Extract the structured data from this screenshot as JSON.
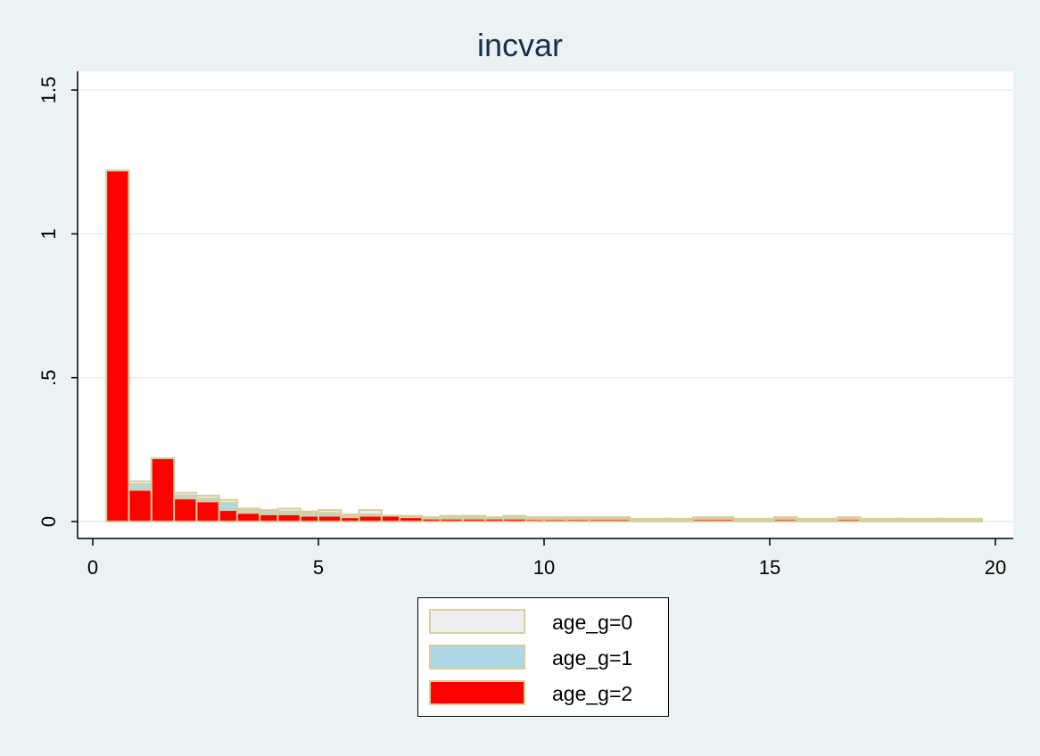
{
  "chart_data": {
    "type": "bar",
    "title": "incvar",
    "xlabel": "",
    "ylabel": "",
    "xlim": [
      0,
      20
    ],
    "ylim": [
      0,
      1.5
    ],
    "x_ticks": [
      {
        "value": 0,
        "label": "0"
      },
      {
        "value": 5,
        "label": "5"
      },
      {
        "value": 10,
        "label": "10"
      },
      {
        "value": 15,
        "label": "15"
      },
      {
        "value": 20,
        "label": "20"
      }
    ],
    "y_ticks": [
      {
        "value": 0,
        "label": "0"
      },
      {
        "value": 0.5,
        "label": ".5"
      },
      {
        "value": 1,
        "label": "1"
      },
      {
        "value": 1.5,
        "label": "1.5"
      }
    ],
    "grid": true,
    "legend_position": "bottom",
    "bar_outline_color": "#d6cf9f",
    "bins": [
      {
        "start": 0.3,
        "end": 0.8
      },
      {
        "start": 0.8,
        "end": 1.3
      },
      {
        "start": 1.3,
        "end": 1.8
      },
      {
        "start": 1.8,
        "end": 2.3
      },
      {
        "start": 2.3,
        "end": 2.8
      },
      {
        "start": 2.8,
        "end": 3.2
      },
      {
        "start": 3.2,
        "end": 3.7
      },
      {
        "start": 3.7,
        "end": 4.1
      },
      {
        "start": 4.1,
        "end": 4.6
      },
      {
        "start": 4.6,
        "end": 5.0
      },
      {
        "start": 5.0,
        "end": 5.5
      },
      {
        "start": 5.5,
        "end": 5.9
      },
      {
        "start": 5.9,
        "end": 6.4
      },
      {
        "start": 6.4,
        "end": 6.8
      },
      {
        "start": 6.8,
        "end": 7.3
      },
      {
        "start": 7.3,
        "end": 7.7
      },
      {
        "start": 7.7,
        "end": 8.2
      },
      {
        "start": 8.2,
        "end": 8.7
      },
      {
        "start": 8.7,
        "end": 9.1
      },
      {
        "start": 9.1,
        "end": 9.6
      },
      {
        "start": 9.6,
        "end": 10.0
      },
      {
        "start": 10.0,
        "end": 10.5
      },
      {
        "start": 10.5,
        "end": 11.0
      },
      {
        "start": 11.0,
        "end": 11.9
      },
      {
        "start": 11.9,
        "end": 12.8
      },
      {
        "start": 12.8,
        "end": 13.3
      },
      {
        "start": 13.3,
        "end": 14.2
      },
      {
        "start": 14.2,
        "end": 15.1
      },
      {
        "start": 15.1,
        "end": 15.6
      },
      {
        "start": 15.6,
        "end": 16.5
      },
      {
        "start": 16.5,
        "end": 17.0
      },
      {
        "start": 17.0,
        "end": 17.9
      },
      {
        "start": 17.9,
        "end": 18.8
      },
      {
        "start": 18.8,
        "end": 19.7
      }
    ],
    "series": [
      {
        "name": "age_g=0",
        "color": "#eeeeee",
        "values": [
          1.22,
          0.14,
          0.22,
          0.1,
          0.09,
          0.075,
          0.045,
          0.04,
          0.045,
          0.035,
          0.04,
          0.025,
          0.04,
          0.02,
          0.02,
          0.015,
          0.02,
          0.02,
          0.015,
          0.02,
          0.015,
          0.015,
          0.015,
          0.015,
          0.01,
          0.01,
          0.015,
          0.01,
          0.015,
          0.01,
          0.015,
          0.01,
          0.01,
          0.01
        ]
      },
      {
        "name": "age_g=1",
        "color": "#add8e6",
        "values": [
          1.22,
          0.13,
          0.22,
          0.09,
          0.08,
          0.065,
          0.04,
          0.035,
          0.035,
          0.03,
          0.03,
          0.02,
          0.025,
          0.02,
          0.018,
          0.012,
          0.015,
          0.015,
          0.012,
          0.015,
          0.012,
          0.012,
          0.012,
          0.012,
          0.008,
          0.008,
          0.012,
          0.008,
          0.012,
          0.008,
          0.012,
          0.008,
          0.008,
          0.008
        ]
      },
      {
        "name": "age_g=2",
        "color": "#ff0000",
        "values": [
          1.22,
          0.11,
          0.22,
          0.08,
          0.07,
          0.04,
          0.03,
          0.025,
          0.025,
          0.02,
          0.02,
          0.015,
          0.02,
          0.02,
          0.015,
          0.01,
          0.01,
          0.01,
          0.01,
          0.01,
          0.008,
          0.008,
          0.008,
          0.008,
          0.005,
          0.005,
          0.008,
          0.005,
          0.008,
          0.005,
          0.008,
          0.005,
          0.005,
          0.005
        ]
      }
    ]
  }
}
